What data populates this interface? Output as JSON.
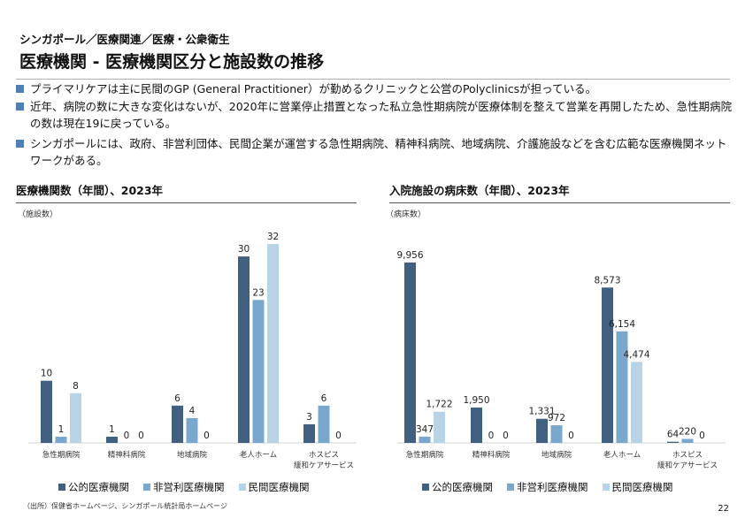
{
  "breadcrumb": "シンガポール／医療関連／医療・公衆衛生",
  "title": "医療機関 - 医療機関区分と施設数の推移",
  "bullets": [
    "プライマリケアは主に民間のGP (General Practitioner）が勤めるクリニックと公営のPolyclinicsが担っている。",
    "近年、病院の数に大きな変化はないが、2020年に営業停止措置となった私立急性期病院が医療体制を整えて営業を再開したため、急性期病院の数は現在19に戻っている。",
    "シンガポールには、政府、非営利団体、民間企業が運営する急性期病院、精神科病院、地域病院、介護施設などを含む広範な医療機関ネットワークがある。"
  ],
  "colors": {
    "public": "#41607f",
    "nonprofit": "#7aa8cc",
    "private": "#b7d3e5",
    "bullet": "#4f7fb6"
  },
  "chart_data": [
    {
      "type": "bar",
      "title": "医療機関数（年間）、2023年",
      "ylabel": "（施設数）",
      "xlabel": "",
      "categories": [
        "急性期病院",
        "精神科病院",
        "地域病院",
        "老人ホーム",
        "ホスピス\n緩和ケアサービス"
      ],
      "series": [
        {
          "name": "公的医療機関",
          "values": [
            10,
            1,
            6,
            30,
            3
          ],
          "labels": [
            "10",
            "1",
            "6",
            "30",
            "3"
          ]
        },
        {
          "name": "非営利医療機関",
          "values": [
            1,
            0,
            4,
            23,
            6
          ],
          "labels": [
            "1",
            "0",
            "4",
            "23",
            "6"
          ]
        },
        {
          "name": "民間医療機関",
          "values": [
            8,
            0,
            0,
            32,
            0
          ],
          "labels": [
            "8",
            "0",
            "0",
            "32",
            "0"
          ]
        }
      ],
      "ylim": [
        0,
        33
      ],
      "grid": false,
      "legend": "bottom"
    },
    {
      "type": "bar",
      "title": "入院施設の病床数（年間）、2023年",
      "ylabel": "（病床数）",
      "xlabel": "",
      "categories": [
        "急性期病院",
        "精神科病院",
        "地域病院",
        "老人ホーム",
        "ホスピス\n緩和ケアサービス"
      ],
      "series": [
        {
          "name": "公的医療機関",
          "values": [
            9956,
            1950,
            1331,
            8573,
            64
          ],
          "labels": [
            "9,956",
            "1,950",
            "1,331",
            "8,573",
            "64"
          ]
        },
        {
          "name": "非営利医療機関",
          "values": [
            347,
            0,
            972,
            6154,
            220
          ],
          "labels": [
            "347",
            "0",
            "972",
            "6,154",
            "220"
          ]
        },
        {
          "name": "民間医療機関",
          "values": [
            1722,
            0,
            0,
            4474,
            0
          ],
          "labels": [
            "1,722",
            "0",
            "0",
            "4,474",
            "0"
          ]
        }
      ],
      "ylim": [
        0,
        10000
      ],
      "grid": false,
      "legend": "bottom"
    }
  ],
  "source": "（出所）保健省ホームページ、シンガポール統計局ホームページ",
  "page_number": "22"
}
